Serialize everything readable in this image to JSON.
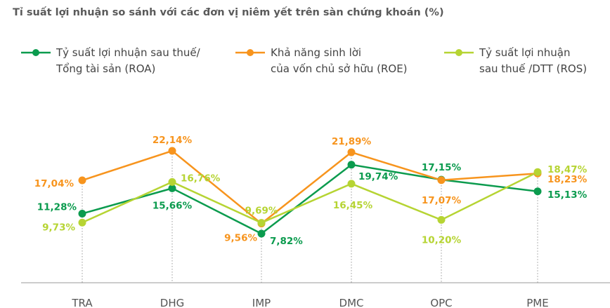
{
  "chart_data": {
    "type": "line",
    "title": "Tỉ suất lợi nhuận so sánh với các đơn vị niêm yết trên sàn chứng khoán (%)",
    "categories": [
      "TRA",
      "DHG",
      "IMP",
      "DMC",
      "OPC",
      "PME"
    ],
    "series": [
      {
        "name": "Tỷ suất lợi nhuận sau thuế/\nTổng tài sản (ROA)",
        "color": "#0b9b4e",
        "values": [
          11.28,
          15.66,
          7.82,
          19.74,
          17.15,
          15.13
        ],
        "value_labels": [
          "11,28%",
          "15,66%",
          "7,82%",
          "19,74%",
          "17,15%",
          "15,13%"
        ]
      },
      {
        "name": "Khả năng sinh lời\ncủa vốn chủ sở hữu (ROE)",
        "color": "#f7941d",
        "values": [
          17.04,
          22.14,
          9.56,
          21.89,
          17.07,
          18.23
        ],
        "value_labels": [
          "17,04%",
          "22,14%",
          "9,56%",
          "21,89%",
          "17,07%",
          "18,23%"
        ]
      },
      {
        "name": "Tỷ suất lợi nhuận\nsau thuế /DTT (ROS)",
        "color": "#b6d433",
        "values": [
          9.73,
          16.76,
          9.69,
          16.45,
          10.2,
          18.47
        ],
        "value_labels": [
          "9,73%",
          "16,76%",
          "9,69%",
          "16,45%",
          "10,20%",
          "18,47%"
        ]
      }
    ]
  }
}
